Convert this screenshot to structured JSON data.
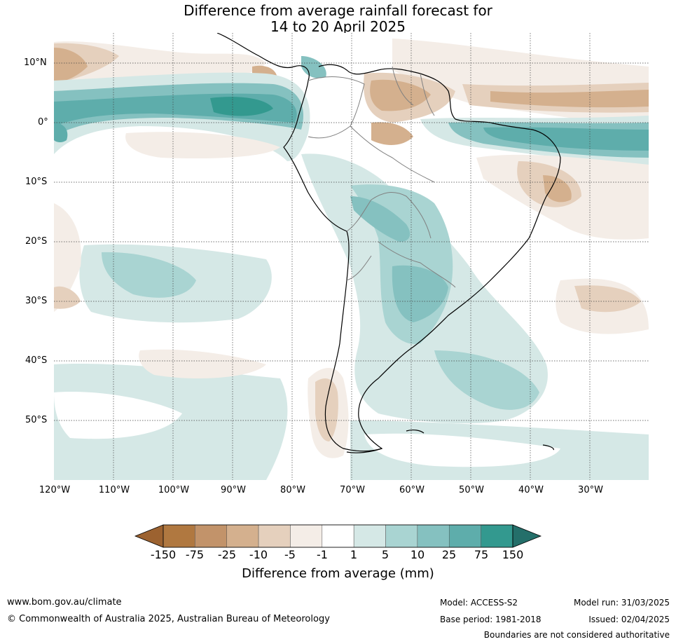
{
  "title": {
    "line1": "Difference from average rainfall forecast for",
    "line2": "14 to 20 April 2025"
  },
  "map": {
    "lat_labels": [
      "10°N",
      "0°",
      "10°S",
      "20°S",
      "30°S",
      "40°S",
      "50°S"
    ],
    "lon_labels": [
      "120°W",
      "110°W",
      "100°W",
      "90°W",
      "80°W",
      "70°W",
      "60°W",
      "50°W",
      "40°W",
      "30°W"
    ]
  },
  "colorbar": {
    "title": "Difference from average (mm)",
    "ticks": [
      "-150",
      "-75",
      "-25",
      "-10",
      "-5",
      "-1",
      "1",
      "5",
      "10",
      "25",
      "75",
      "150"
    ],
    "colors": [
      "#9c6230",
      "#b07840",
      "#c2936a",
      "#d4b08e",
      "#e5d0bd",
      "#f4ede7",
      "#ffffff",
      "#d5e8e6",
      "#a9d4d2",
      "#85c1c0",
      "#5eadab",
      "#33998f",
      "#246f6a"
    ]
  },
  "footer": {
    "url": "www.bom.gov.au/climate",
    "copyright": "© Commonwealth of Australia 2025, Australian Bureau of Meteorology",
    "model": "Model: ACCESS-S2",
    "base_period": "Base period: 1981-2018",
    "model_run": "Model run: 31/03/2025",
    "issued": "Issued: 02/04/2025",
    "disclaimer": "Boundaries are not considered authoritative"
  }
}
